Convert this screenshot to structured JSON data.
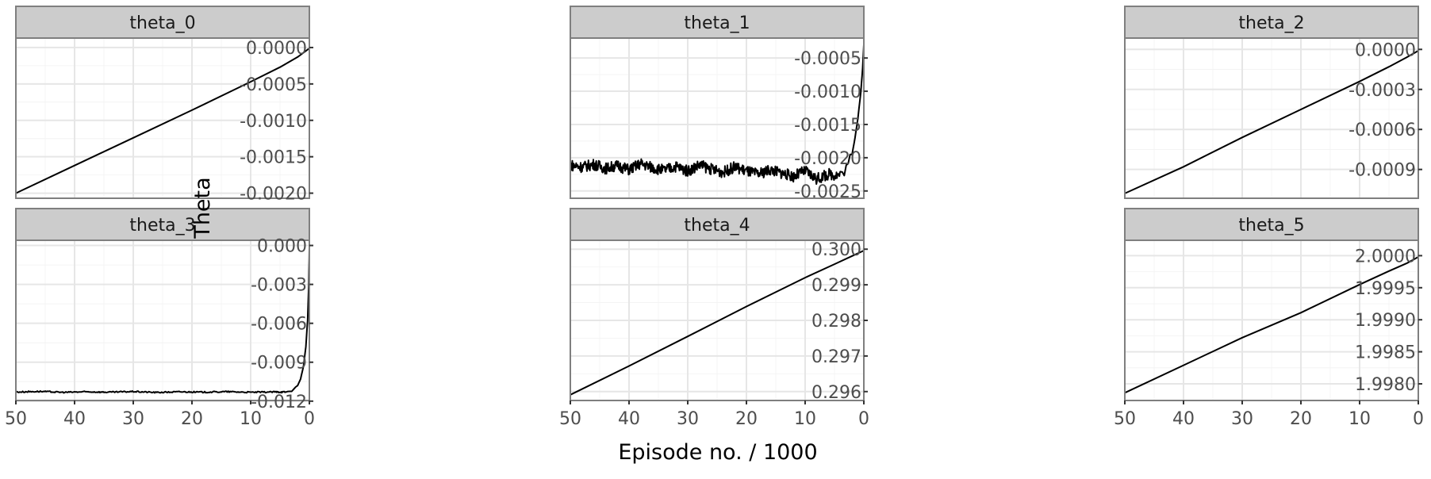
{
  "chart_data": {
    "type": "line",
    "xlabel": "Episode no. / 1000",
    "ylabel": "Theta",
    "x_reversed": true,
    "xlim": [
      0,
      50
    ],
    "xticks": [
      50,
      40,
      30,
      20,
      10,
      0
    ],
    "grid": true,
    "colors": {
      "line": "#000000",
      "strip_fill": "#cccccc",
      "strip_border": "#7f7f7f",
      "grid_major": "#e6e6e6",
      "grid_minor": "#f4f4f4",
      "tick_text": "#4d4d4d"
    },
    "panels": [
      {
        "name": "theta_0",
        "ylim": [
          -0.00207,
          0.00013
        ],
        "yticks": [
          "0.0000",
          "-0.0005",
          "-0.0010",
          "-0.0015",
          "-0.0020"
        ],
        "ytick_values": [
          0.0,
          -0.0005,
          -0.001,
          -0.0015,
          -0.002
        ],
        "x": [
          50,
          40,
          30,
          20,
          10,
          5,
          2,
          0
        ],
        "y": [
          -0.002,
          -0.00162,
          -0.00124,
          -0.00086,
          -0.00047,
          -0.00027,
          -0.00013,
          -1e-05
        ]
      },
      {
        "name": "theta_1",
        "ylim": [
          -0.00261,
          -0.0002
        ],
        "yticks": [
          "-0.0005",
          "-0.0010",
          "-0.0015",
          "-0.0020",
          "-0.0025"
        ],
        "ytick_values": [
          -0.0005,
          -0.001,
          -0.0015,
          -0.002,
          -0.0025
        ],
        "x": [
          50,
          48,
          46,
          44,
          42,
          40,
          38,
          36,
          34,
          32,
          30,
          28,
          26,
          24,
          22,
          20,
          18,
          16,
          14,
          12,
          10,
          8,
          6,
          4,
          3,
          2,
          1.5,
          1,
          0.5,
          0.2,
          0
        ],
        "y": [
          -0.00211,
          -0.00214,
          -0.0021,
          -0.00216,
          -0.00212,
          -0.00218,
          -0.00209,
          -0.00215,
          -0.00219,
          -0.00213,
          -0.0022,
          -0.00211,
          -0.00217,
          -0.00222,
          -0.00214,
          -0.0022,
          -0.00225,
          -0.00218,
          -0.00223,
          -0.00228,
          -0.0022,
          -0.00232,
          -0.00225,
          -0.00226,
          -0.00215,
          -0.00195,
          -0.0017,
          -0.0014,
          -0.001,
          -0.00065,
          -0.0003
        ]
      },
      {
        "name": "theta_2",
        "ylim": [
          -0.001116,
          8.5e-05
        ],
        "yticks": [
          "0.0000",
          "-0.0003",
          "-0.0006",
          "-0.0009"
        ],
        "ytick_values": [
          0.0,
          -0.0003,
          -0.0006,
          -0.0009
        ],
        "x": [
          50,
          40,
          30,
          20,
          10,
          5,
          2,
          0
        ],
        "y": [
          -0.00108,
          -0.00088,
          -0.00066,
          -0.00045,
          -0.00024,
          -0.00013,
          -6e-05,
          -1e-05
        ]
      },
      {
        "name": "theta_3",
        "ylim": [
          -0.01195,
          0.0004
        ],
        "yticks": [
          "0.000",
          "-0.003",
          "-0.006",
          "-0.009",
          "-0.012"
        ],
        "ytick_values": [
          0.0,
          -0.003,
          -0.006,
          -0.009,
          -0.012
        ],
        "x": [
          50,
          46,
          42,
          38,
          34,
          30,
          26,
          22,
          18,
          14,
          10,
          6,
          4,
          3,
          2,
          1.5,
          1,
          0.6,
          0.3,
          0.1,
          0
        ],
        "y": [
          -0.0113,
          -0.01125,
          -0.01132,
          -0.01128,
          -0.01131,
          -0.01126,
          -0.01133,
          -0.01128,
          -0.01131,
          -0.01127,
          -0.01132,
          -0.01129,
          -0.0113,
          -0.0112,
          -0.0108,
          -0.0103,
          -0.0093,
          -0.0078,
          -0.0058,
          -0.003,
          -0.0001
        ]
      },
      {
        "name": "theta_4",
        "ylim": [
          0.29575,
          0.30025
        ],
        "yticks": [
          "0.300",
          "0.299",
          "0.298",
          "0.297",
          "0.296"
        ],
        "ytick_values": [
          0.3,
          0.299,
          0.298,
          0.297,
          0.296
        ],
        "x": [
          50,
          40,
          30,
          20,
          10,
          5,
          2,
          0
        ],
        "y": [
          0.29591,
          0.29672,
          0.29755,
          0.29839,
          0.2992,
          0.29958,
          0.29981,
          0.29996
        ]
      },
      {
        "name": "theta_5",
        "ylim": [
          1.99774,
          2.00024
        ],
        "yticks": [
          "2.0000",
          "1.9995",
          "1.9990",
          "1.9985",
          "1.9980"
        ],
        "ytick_values": [
          2.0,
          1.9995,
          1.999,
          1.9985,
          1.998
        ],
        "x": [
          50,
          40,
          30,
          20,
          10,
          5,
          2,
          0
        ],
        "y": [
          1.99786,
          1.99829,
          1.99872,
          1.99911,
          1.99955,
          1.99976,
          1.99988,
          1.99998
        ]
      }
    ]
  }
}
